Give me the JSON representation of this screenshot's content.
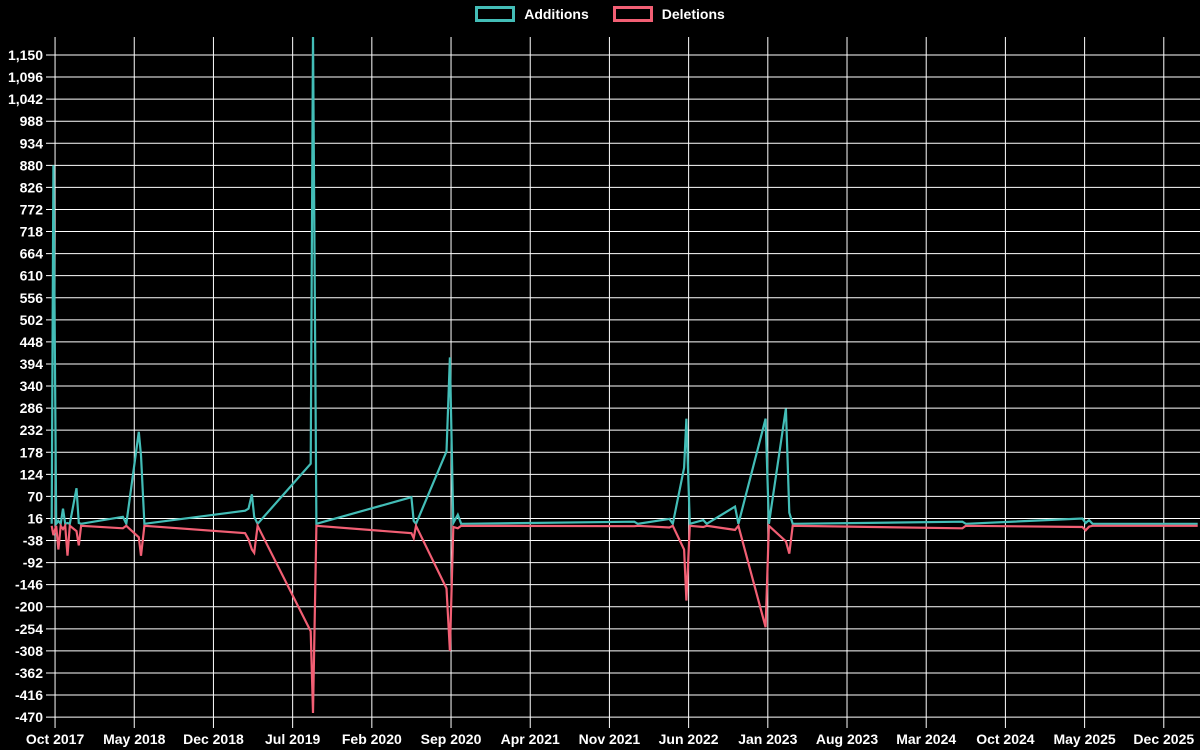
{
  "chart_data": {
    "type": "line",
    "title": "",
    "description": "Weekly code additions and deletions over time",
    "background_color": "#000000",
    "grid": true,
    "grid_color": "#ffffff",
    "text_color": "#ffffff",
    "legend_position": "top-center",
    "x_axis": {
      "unit": "months since Oct 2017",
      "tick_positions": [
        0,
        7,
        14,
        21,
        28,
        35,
        42,
        49,
        56,
        63,
        70,
        77,
        84,
        91,
        98
      ],
      "tick_labels": [
        "Oct 2017",
        "May 2018",
        "Dec 2018",
        "Jul 2019",
        "Feb 2020",
        "Sep 2020",
        "Apr 2021",
        "Nov 2021",
        "Jun 2022",
        "Jan 2023",
        "Aug 2023",
        "Mar 2024",
        "Oct 2024",
        "May 2025",
        "Dec 2025"
      ]
    },
    "y_axis": {
      "tick_values": [
        1150,
        1096,
        1042,
        988,
        934,
        880,
        826,
        772,
        718,
        664,
        610,
        556,
        502,
        448,
        394,
        340,
        286,
        232,
        178,
        124,
        70,
        16,
        -38,
        -92,
        -146,
        -200,
        -254,
        -308,
        -362,
        -416,
        -470
      ],
      "tick_labels": [
        "1,150",
        "1,096",
        "1,042",
        "988",
        "934",
        "880",
        "826",
        "772",
        "718",
        "664",
        "610",
        "556",
        "502",
        "448",
        "394",
        "340",
        "286",
        "232",
        "178",
        "124",
        "70",
        "16",
        "-38",
        "-92",
        "-146",
        "-200",
        "-254",
        "-308",
        "-362",
        "-416",
        "-470"
      ]
    },
    "xlim": [
      -0.8,
      101.2
    ],
    "ylim": [
      -482,
      1194
    ],
    "x": [
      -0.3,
      -0.15,
      0.1,
      0.3,
      0.5,
      0.7,
      0.9,
      1.1,
      1.3,
      1.9,
      2.1,
      2.3,
      6.0,
      6.3,
      7.4,
      7.6,
      7.9,
      16.8,
      17.1,
      17.4,
      17.6,
      17.9,
      22.6,
      22.8,
      23.1,
      31.5,
      31.7,
      31.9,
      34.6,
      34.9,
      35.2,
      35.6,
      35.9,
      51.2,
      51.5,
      54.3,
      54.6,
      55.6,
      55.8,
      56.1,
      57.3,
      57.6,
      60.1,
      60.4,
      62.8,
      63.1,
      64.6,
      64.9,
      65.2,
      80.2,
      80.5,
      90.8,
      91.1,
      91.4,
      91.7,
      101.0
    ],
    "series": [
      {
        "name": "Additions",
        "color": "#43bdb7",
        "values": [
          3,
          880,
          3,
          10,
          3,
          40,
          3,
          5,
          3,
          90,
          5,
          3,
          20,
          3,
          228,
          170,
          3,
          35,
          40,
          75,
          20,
          3,
          150,
          1200,
          3,
          68,
          10,
          3,
          180,
          410,
          5,
          25,
          3,
          8,
          3,
          15,
          3,
          140,
          260,
          3,
          12,
          3,
          45,
          3,
          260,
          3,
          285,
          30,
          3,
          8,
          3,
          16,
          5,
          12,
          3,
          3
        ]
      },
      {
        "name": "Deletions",
        "color": "#f25f74",
        "values": [
          -2,
          -25,
          -2,
          -60,
          -2,
          -10,
          -2,
          -75,
          -2,
          -15,
          -50,
          -2,
          -8,
          -2,
          -30,
          -75,
          -2,
          -20,
          -35,
          -60,
          -68,
          -2,
          -260,
          -460,
          -2,
          -20,
          -32,
          -2,
          -155,
          -308,
          -5,
          -8,
          -2,
          -3,
          -2,
          -6,
          -2,
          -60,
          -185,
          -2,
          -5,
          -2,
          -12,
          -2,
          -250,
          -2,
          -40,
          -70,
          -2,
          -8,
          -2,
          -5,
          -13,
          -4,
          -2,
          -2
        ]
      }
    ]
  }
}
